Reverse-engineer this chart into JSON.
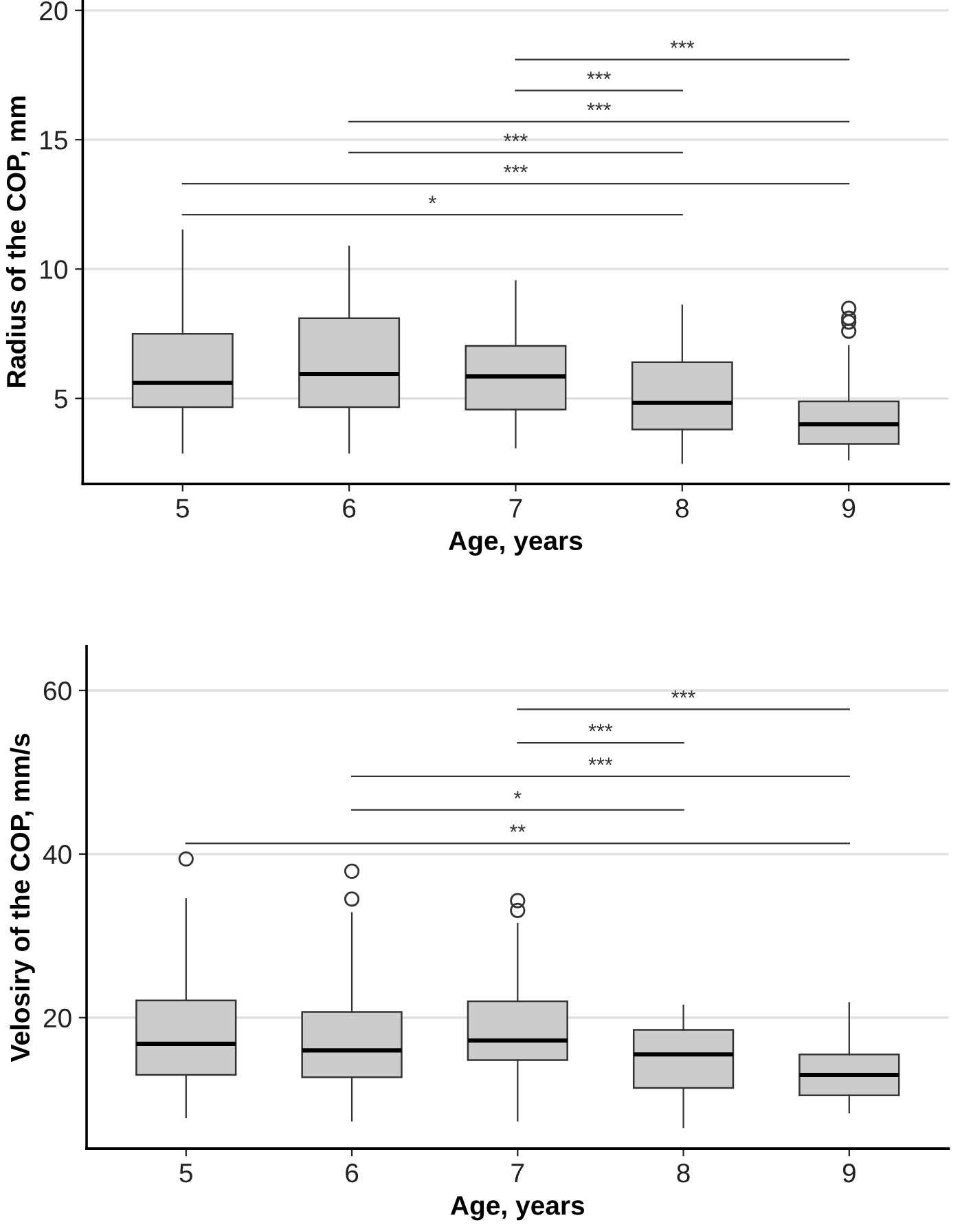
{
  "chart_data": [
    {
      "type": "box",
      "xlabel": "Age, years",
      "ylabel": "Radius of the COP, mm",
      "categories": [
        "5",
        "6",
        "7",
        "8",
        "9"
      ],
      "color": "#cccccc",
      "ylim": [
        1.7,
        20.4
      ],
      "yticks": [
        5,
        10,
        15,
        20
      ],
      "grid": "y",
      "boxes": [
        {
          "low": 2.9,
          "q1": 4.66,
          "median": 5.6,
          "q3": 7.5,
          "high": 11.5
        },
        {
          "low": 2.9,
          "q1": 4.66,
          "median": 5.94,
          "q3": 8.1,
          "high": 10.87
        },
        {
          "low": 3.1,
          "q1": 4.57,
          "median": 5.85,
          "q3": 7.03,
          "high": 9.54
        },
        {
          "low": 2.5,
          "q1": 3.8,
          "median": 4.83,
          "q3": 6.4,
          "high": 8.6
        },
        {
          "low": 2.63,
          "q1": 3.24,
          "median": 4.0,
          "q3": 4.88,
          "high": 7.03,
          "outliers": [
            8.48,
            8.1,
            7.95,
            7.6
          ]
        }
      ],
      "series": [
        {
          "type": "line",
          "color": "#333333",
          "x": [
            "7",
            "9"
          ],
          "values": [
            18.1,
            18.1
          ]
        },
        {
          "type": "line",
          "color": "#333333",
          "x": [
            "7",
            "8"
          ],
          "values": [
            16.9,
            16.9
          ]
        },
        {
          "type": "line",
          "color": "#333333",
          "x": [
            "6",
            "9"
          ],
          "values": [
            15.7,
            15.7
          ]
        },
        {
          "type": "line",
          "color": "#333333",
          "x": [
            "6",
            "8"
          ],
          "values": [
            14.5,
            14.5
          ]
        },
        {
          "type": "line",
          "color": "#333333",
          "x": [
            "5",
            "9"
          ],
          "values": [
            13.3,
            13.3
          ]
        },
        {
          "type": "line",
          "color": "#333333",
          "x": [
            "5",
            "8"
          ],
          "values": [
            12.1,
            12.1
          ]
        }
      ],
      "annotations": [
        "***",
        "***",
        "***",
        "***",
        "***",
        "*"
      ]
    },
    {
      "type": "box",
      "xlabel": "Age, years",
      "ylabel": "Velosiry of the COP, mm/s",
      "categories": [
        "5",
        "6",
        "7",
        "8",
        "9"
      ],
      "color": "#cccccc",
      "ylim": [
        4,
        65.4
      ],
      "yticks": [
        20,
        40,
        60
      ],
      "grid": "y",
      "boxes": [
        {
          "low": 7.8,
          "q1": 13.0,
          "median": 16.8,
          "q3": 22.1,
          "high": 34.5,
          "outliers": [
            39.4
          ]
        },
        {
          "low": 7.4,
          "q1": 12.7,
          "median": 16.0,
          "q3": 20.7,
          "high": 32.8,
          "outliers": [
            37.9,
            34.5
          ]
        },
        {
          "low": 7.4,
          "q1": 14.8,
          "median": 17.2,
          "q3": 22.0,
          "high": 31.5,
          "outliers": [
            34.3,
            33.1
          ]
        },
        {
          "low": 6.6,
          "q1": 11.4,
          "median": 15.5,
          "q3": 18.5,
          "high": 21.5
        },
        {
          "low": 8.4,
          "q1": 10.5,
          "median": 13.0,
          "q3": 15.5,
          "high": 21.8
        }
      ],
      "series": [
        {
          "type": "line",
          "color": "#333333",
          "x": [
            "7",
            "9"
          ],
          "values": [
            57.7,
            57.7
          ]
        },
        {
          "type": "line",
          "color": "#333333",
          "x": [
            "7",
            "8"
          ],
          "values": [
            53.6,
            53.6
          ]
        },
        {
          "type": "line",
          "color": "#333333",
          "x": [
            "6",
            "9"
          ],
          "values": [
            49.5,
            49.5
          ]
        },
        {
          "type": "line",
          "color": "#333333",
          "x": [
            "6",
            "8"
          ],
          "values": [
            45.4,
            45.4
          ]
        },
        {
          "type": "line",
          "color": "#333333",
          "x": [
            "5",
            "9"
          ],
          "values": [
            41.3,
            41.3
          ]
        }
      ],
      "annotations": [
        "***",
        "***",
        "***",
        "*",
        "**"
      ]
    }
  ]
}
